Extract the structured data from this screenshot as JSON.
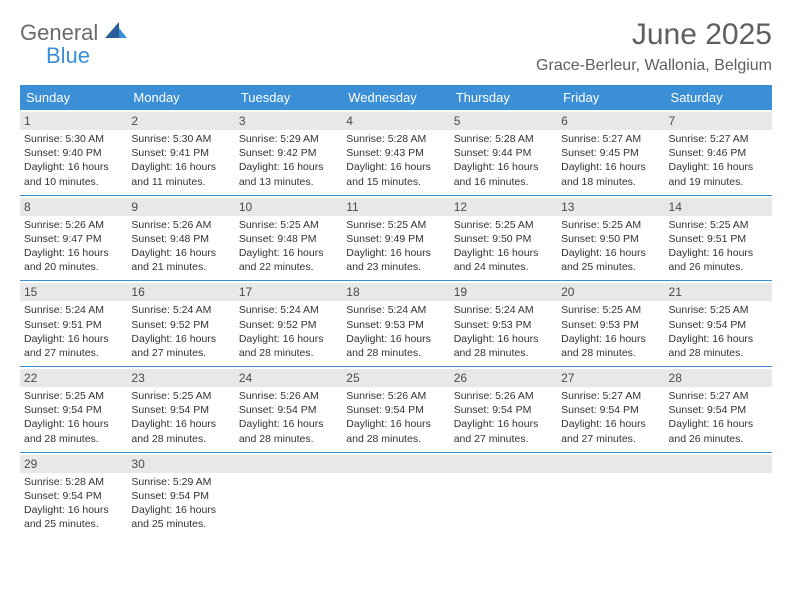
{
  "logo": {
    "word1": "General",
    "word2": "Blue"
  },
  "title": "June 2025",
  "location": "Grace-Berleur, Wallonia, Belgium",
  "colors": {
    "brand_blue": "#3a8fd6",
    "header_text": "#ffffff",
    "daybar_bg": "#e8e8e8",
    "text_gray": "#5f5f5f",
    "body_text": "#333333"
  },
  "dayheaders": [
    "Sunday",
    "Monday",
    "Tuesday",
    "Wednesday",
    "Thursday",
    "Friday",
    "Saturday"
  ],
  "weeks": [
    [
      {
        "n": "1",
        "sr": "Sunrise: 5:30 AM",
        "ss": "Sunset: 9:40 PM",
        "d1": "Daylight: 16 hours",
        "d2": "and 10 minutes."
      },
      {
        "n": "2",
        "sr": "Sunrise: 5:30 AM",
        "ss": "Sunset: 9:41 PM",
        "d1": "Daylight: 16 hours",
        "d2": "and 11 minutes."
      },
      {
        "n": "3",
        "sr": "Sunrise: 5:29 AM",
        "ss": "Sunset: 9:42 PM",
        "d1": "Daylight: 16 hours",
        "d2": "and 13 minutes."
      },
      {
        "n": "4",
        "sr": "Sunrise: 5:28 AM",
        "ss": "Sunset: 9:43 PM",
        "d1": "Daylight: 16 hours",
        "d2": "and 15 minutes."
      },
      {
        "n": "5",
        "sr": "Sunrise: 5:28 AM",
        "ss": "Sunset: 9:44 PM",
        "d1": "Daylight: 16 hours",
        "d2": "and 16 minutes."
      },
      {
        "n": "6",
        "sr": "Sunrise: 5:27 AM",
        "ss": "Sunset: 9:45 PM",
        "d1": "Daylight: 16 hours",
        "d2": "and 18 minutes."
      },
      {
        "n": "7",
        "sr": "Sunrise: 5:27 AM",
        "ss": "Sunset: 9:46 PM",
        "d1": "Daylight: 16 hours",
        "d2": "and 19 minutes."
      }
    ],
    [
      {
        "n": "8",
        "sr": "Sunrise: 5:26 AM",
        "ss": "Sunset: 9:47 PM",
        "d1": "Daylight: 16 hours",
        "d2": "and 20 minutes."
      },
      {
        "n": "9",
        "sr": "Sunrise: 5:26 AM",
        "ss": "Sunset: 9:48 PM",
        "d1": "Daylight: 16 hours",
        "d2": "and 21 minutes."
      },
      {
        "n": "10",
        "sr": "Sunrise: 5:25 AM",
        "ss": "Sunset: 9:48 PM",
        "d1": "Daylight: 16 hours",
        "d2": "and 22 minutes."
      },
      {
        "n": "11",
        "sr": "Sunrise: 5:25 AM",
        "ss": "Sunset: 9:49 PM",
        "d1": "Daylight: 16 hours",
        "d2": "and 23 minutes."
      },
      {
        "n": "12",
        "sr": "Sunrise: 5:25 AM",
        "ss": "Sunset: 9:50 PM",
        "d1": "Daylight: 16 hours",
        "d2": "and 24 minutes."
      },
      {
        "n": "13",
        "sr": "Sunrise: 5:25 AM",
        "ss": "Sunset: 9:50 PM",
        "d1": "Daylight: 16 hours",
        "d2": "and 25 minutes."
      },
      {
        "n": "14",
        "sr": "Sunrise: 5:25 AM",
        "ss": "Sunset: 9:51 PM",
        "d1": "Daylight: 16 hours",
        "d2": "and 26 minutes."
      }
    ],
    [
      {
        "n": "15",
        "sr": "Sunrise: 5:24 AM",
        "ss": "Sunset: 9:51 PM",
        "d1": "Daylight: 16 hours",
        "d2": "and 27 minutes."
      },
      {
        "n": "16",
        "sr": "Sunrise: 5:24 AM",
        "ss": "Sunset: 9:52 PM",
        "d1": "Daylight: 16 hours",
        "d2": "and 27 minutes."
      },
      {
        "n": "17",
        "sr": "Sunrise: 5:24 AM",
        "ss": "Sunset: 9:52 PM",
        "d1": "Daylight: 16 hours",
        "d2": "and 28 minutes."
      },
      {
        "n": "18",
        "sr": "Sunrise: 5:24 AM",
        "ss": "Sunset: 9:53 PM",
        "d1": "Daylight: 16 hours",
        "d2": "and 28 minutes."
      },
      {
        "n": "19",
        "sr": "Sunrise: 5:24 AM",
        "ss": "Sunset: 9:53 PM",
        "d1": "Daylight: 16 hours",
        "d2": "and 28 minutes."
      },
      {
        "n": "20",
        "sr": "Sunrise: 5:25 AM",
        "ss": "Sunset: 9:53 PM",
        "d1": "Daylight: 16 hours",
        "d2": "and 28 minutes."
      },
      {
        "n": "21",
        "sr": "Sunrise: 5:25 AM",
        "ss": "Sunset: 9:54 PM",
        "d1": "Daylight: 16 hours",
        "d2": "and 28 minutes."
      }
    ],
    [
      {
        "n": "22",
        "sr": "Sunrise: 5:25 AM",
        "ss": "Sunset: 9:54 PM",
        "d1": "Daylight: 16 hours",
        "d2": "and 28 minutes."
      },
      {
        "n": "23",
        "sr": "Sunrise: 5:25 AM",
        "ss": "Sunset: 9:54 PM",
        "d1": "Daylight: 16 hours",
        "d2": "and 28 minutes."
      },
      {
        "n": "24",
        "sr": "Sunrise: 5:26 AM",
        "ss": "Sunset: 9:54 PM",
        "d1": "Daylight: 16 hours",
        "d2": "and 28 minutes."
      },
      {
        "n": "25",
        "sr": "Sunrise: 5:26 AM",
        "ss": "Sunset: 9:54 PM",
        "d1": "Daylight: 16 hours",
        "d2": "and 28 minutes."
      },
      {
        "n": "26",
        "sr": "Sunrise: 5:26 AM",
        "ss": "Sunset: 9:54 PM",
        "d1": "Daylight: 16 hours",
        "d2": "and 27 minutes."
      },
      {
        "n": "27",
        "sr": "Sunrise: 5:27 AM",
        "ss": "Sunset: 9:54 PM",
        "d1": "Daylight: 16 hours",
        "d2": "and 27 minutes."
      },
      {
        "n": "28",
        "sr": "Sunrise: 5:27 AM",
        "ss": "Sunset: 9:54 PM",
        "d1": "Daylight: 16 hours",
        "d2": "and 26 minutes."
      }
    ],
    [
      {
        "n": "29",
        "sr": "Sunrise: 5:28 AM",
        "ss": "Sunset: 9:54 PM",
        "d1": "Daylight: 16 hours",
        "d2": "and 25 minutes."
      },
      {
        "n": "30",
        "sr": "Sunrise: 5:29 AM",
        "ss": "Sunset: 9:54 PM",
        "d1": "Daylight: 16 hours",
        "d2": "and 25 minutes."
      },
      {
        "n": "",
        "sr": "",
        "ss": "",
        "d1": "",
        "d2": ""
      },
      {
        "n": "",
        "sr": "",
        "ss": "",
        "d1": "",
        "d2": ""
      },
      {
        "n": "",
        "sr": "",
        "ss": "",
        "d1": "",
        "d2": ""
      },
      {
        "n": "",
        "sr": "",
        "ss": "",
        "d1": "",
        "d2": ""
      },
      {
        "n": "",
        "sr": "",
        "ss": "",
        "d1": "",
        "d2": ""
      }
    ]
  ]
}
